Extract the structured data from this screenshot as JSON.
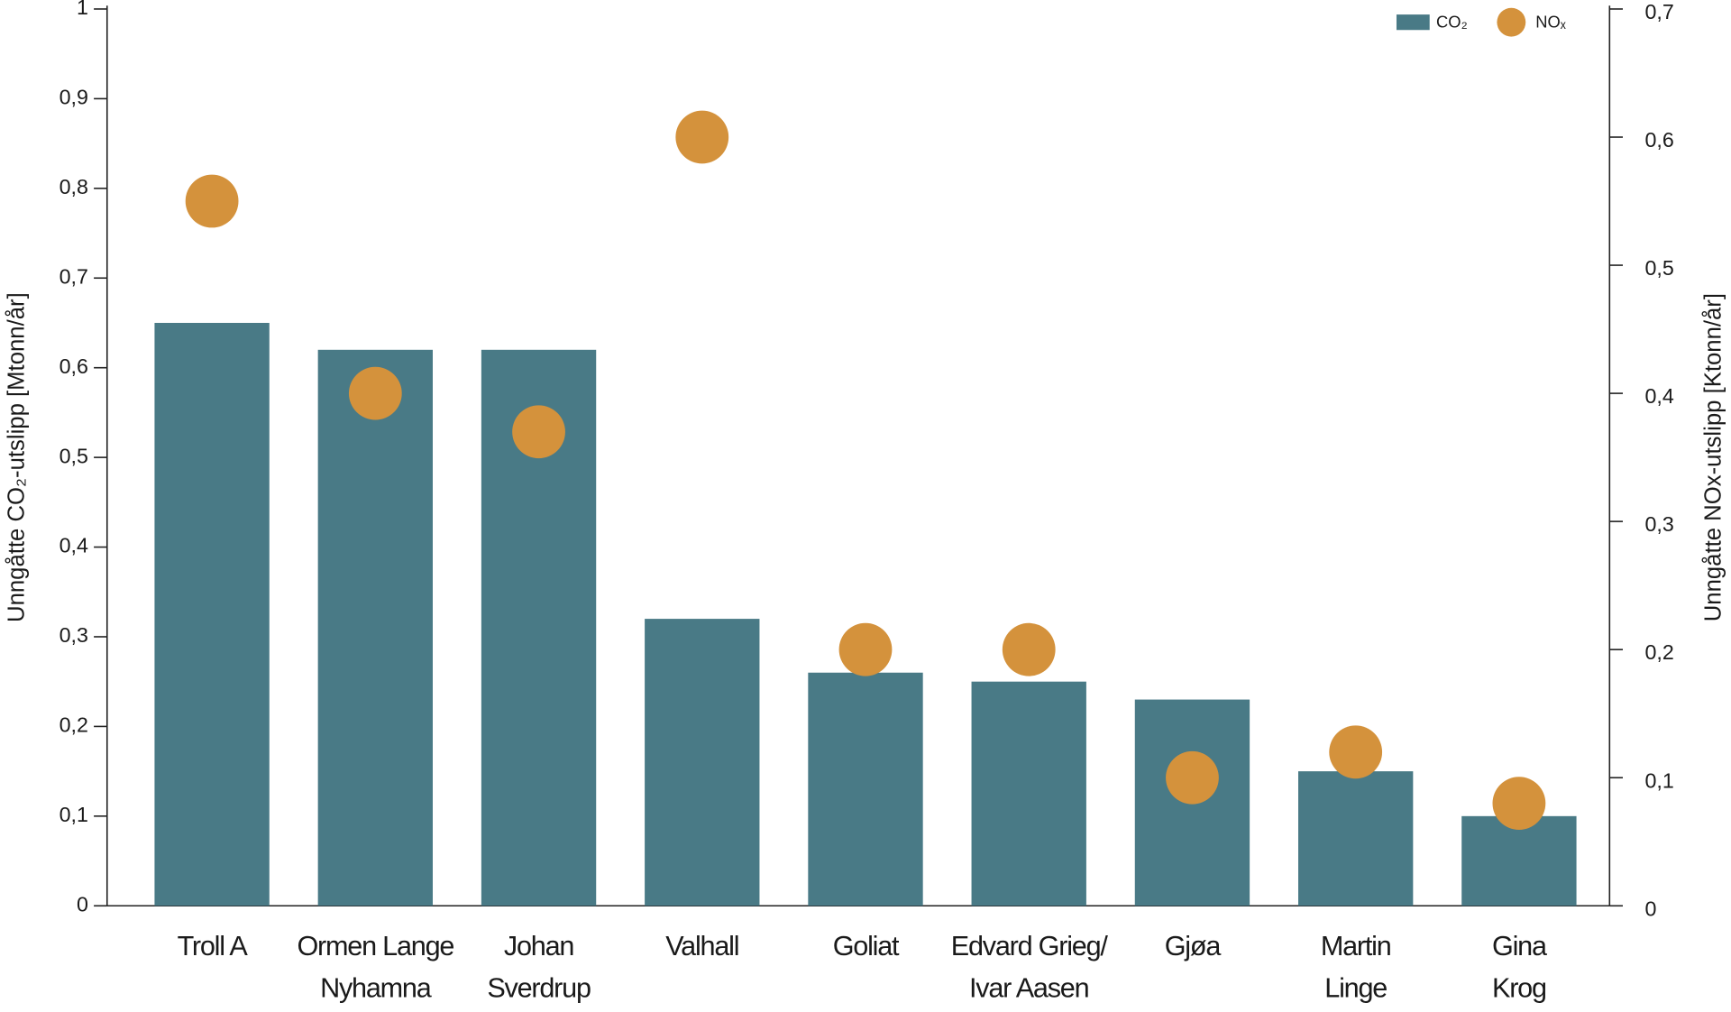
{
  "chart_data": {
    "type": "bar-dot",
    "categories": [
      "Troll A",
      "Ormen Lange\nNyhamna",
      "Johan\nSverdrup",
      "Valhall",
      "Goliat",
      "Edvard Grieg/\nIvar Aasen",
      "Gjøa",
      "Martin\nLinge",
      "Gina\nKrog"
    ],
    "series": [
      {
        "name": "CO₂",
        "color": "#497a86",
        "values": [
          0.65,
          0.62,
          0.62,
          0.32,
          0.26,
          0.25,
          0.23,
          0.15,
          0.1
        ]
      },
      {
        "name": "NOₓ",
        "color": "#d4923c",
        "axis": "y2",
        "values": [
          0.55,
          0.4,
          0.37,
          0.6,
          0.2,
          0.2,
          0.1,
          0.12,
          0.08
        ]
      }
    ],
    "ylabel": "Unngåtte CO₂-utslipp [Mtonn/år]",
    "y2label": "Unngåtte NOx-utslipp [Ktonn/år]",
    "ylim": [
      0,
      1
    ],
    "yticks": [
      0,
      {
        "value": 0.1,
        "label": "0,1"
      },
      {
        "value": 0.2,
        "label": "0,2"
      },
      {
        "value": 0.3,
        "label": "0,3"
      },
      {
        "value": 0.4,
        "label": "0,4"
      },
      {
        "value": 0.5,
        "label": "0,5"
      },
      {
        "value": 0.6,
        "label": "0,6"
      },
      {
        "value": 0.7,
        "label": "0,7"
      },
      {
        "value": 0.8,
        "label": "0,8"
      },
      {
        "value": 0.9,
        "label": "0,9"
      },
      1
    ],
    "y2lim": [
      0,
      0.7
    ],
    "y2ticks": [
      0,
      {
        "value": 0.1,
        "label": "0,1"
      },
      {
        "value": 0.2,
        "label": "0,2"
      },
      {
        "value": 0.3,
        "label": "0,3"
      },
      {
        "value": 0.4,
        "label": "0,4"
      },
      {
        "value": 0.5,
        "label": "0,5"
      },
      {
        "value": 0.6,
        "label": "0,6"
      },
      {
        "value": 0.7,
        "label": "0,7"
      }
    ],
    "legend": "top-right"
  }
}
